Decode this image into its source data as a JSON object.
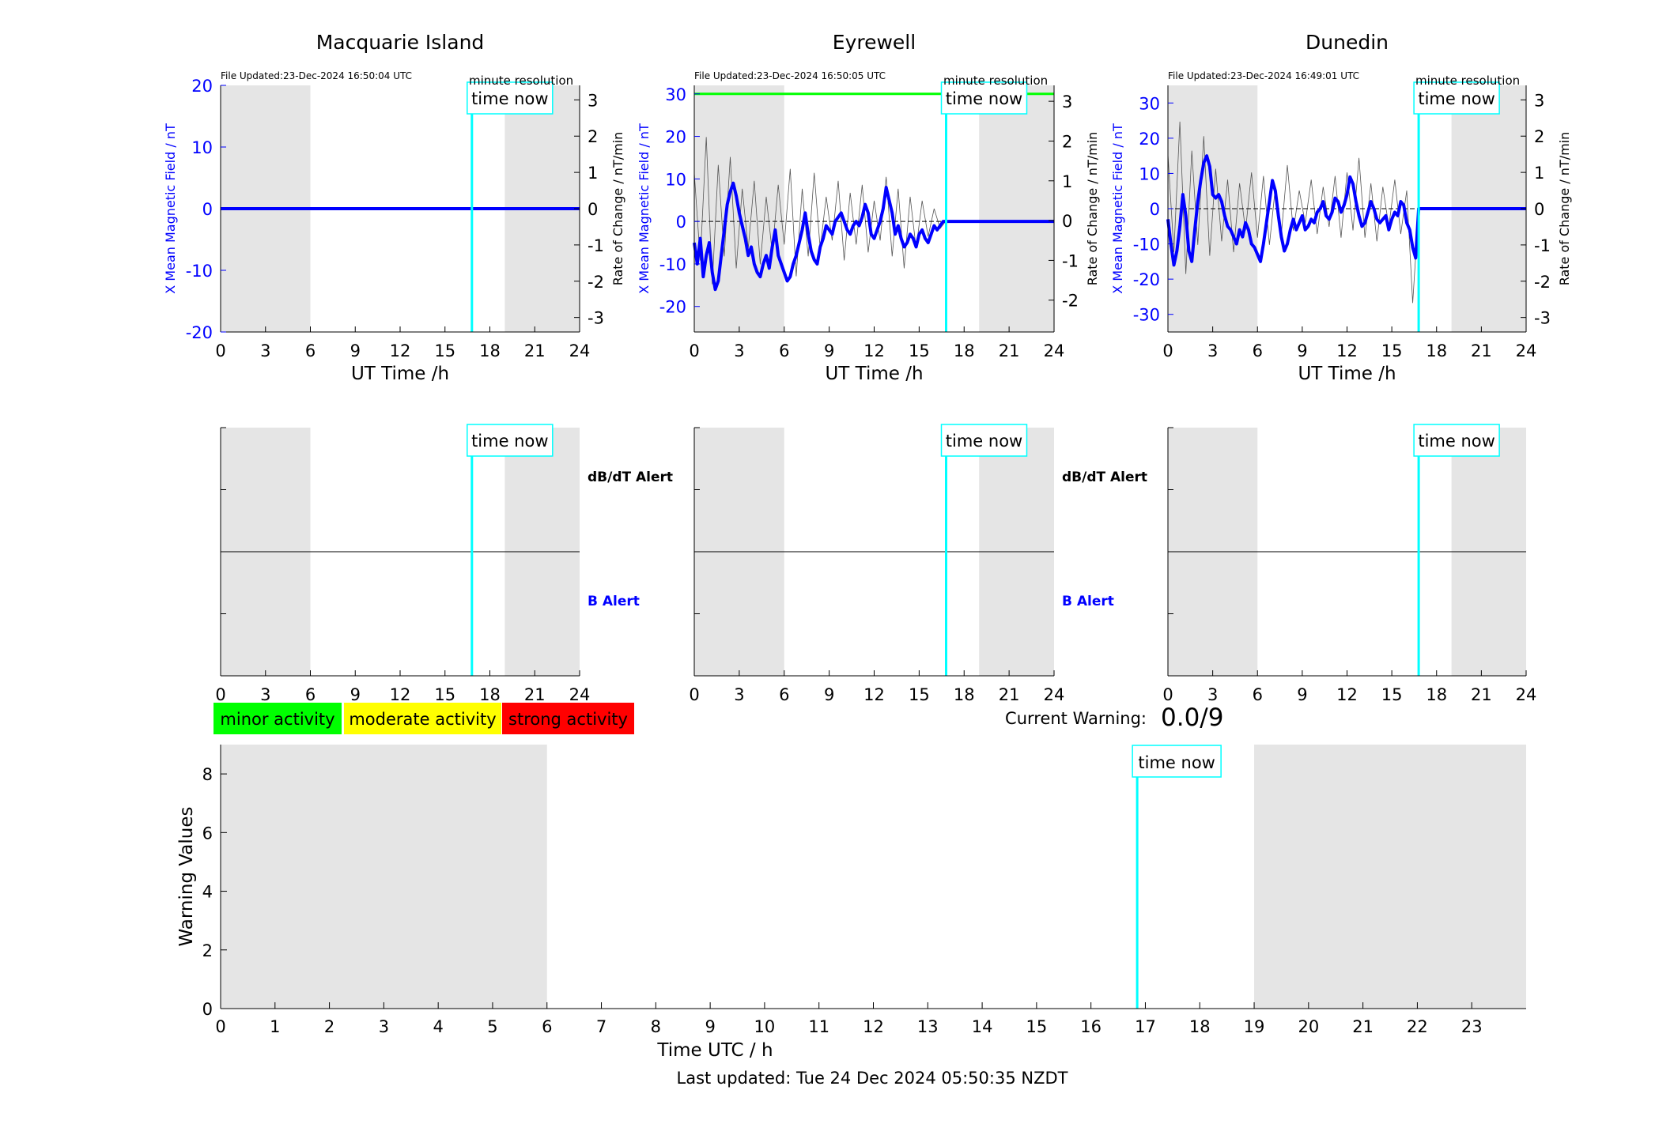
{
  "colors": {
    "field": "#0000ff",
    "rate": "#000000",
    "now": "#00ffff",
    "shade": "#e5e5e5",
    "alert_limit": "#00ff00",
    "minor": "#00ff00",
    "moderate": "#ffff00",
    "strong": "#ff0000"
  },
  "time_now_label": "time now",
  "last_updated": "Last updated: Tue 24 Dec 2024 05:50:35 NZDT",
  "current_warning": {
    "label": "Current Warning:",
    "value": "0.0/9"
  },
  "legend": [
    "minor activity",
    "moderate activity",
    "strong activity"
  ],
  "alert_labels": {
    "rate": "dB/dT Alert",
    "field": "B Alert"
  },
  "chart_data": [
    {
      "type": "line",
      "title": "Macquarie Island",
      "file_updated": "File Updated:23-Dec-2024 16:50:04 UTC",
      "resolution": "minute resolution",
      "xlabel": "UT Time /h",
      "ylabel_left": "X Mean Magnetic Field / nT",
      "ylabel_right": "Rate of Change / nT/min",
      "xlim": [
        0,
        24
      ],
      "xticks": [
        0,
        3,
        6,
        9,
        12,
        15,
        18,
        21,
        24
      ],
      "ylim_left": [
        -20,
        20
      ],
      "yticks_left": [
        -20,
        -10,
        0,
        10,
        20
      ],
      "ylim_right": [
        -3.4,
        3.4
      ],
      "yticks_right": [
        -3,
        -2,
        -1,
        0,
        1,
        2,
        3
      ],
      "shaded_hours": [
        [
          0,
          6
        ],
        [
          19,
          24
        ]
      ],
      "time_now": 16.8,
      "alert_line_nT": null,
      "series": [
        {
          "name": "X Mean Magnetic Field",
          "axis": "left",
          "x": [
            0,
            24
          ],
          "y": [
            0,
            0
          ]
        },
        {
          "name": "Rate of Change",
          "axis": "right",
          "x": [
            0,
            24
          ],
          "y": [
            0,
            0
          ]
        }
      ]
    },
    {
      "type": "line",
      "title": "Eyrewell",
      "file_updated": "File Updated:23-Dec-2024 16:50:05 UTC",
      "resolution": "minute resolution",
      "xlabel": "UT Time /h",
      "ylabel_left": "X Mean Magnetic Field / nT",
      "ylabel_right": "Rate of Change / nT/min",
      "xlim": [
        0,
        24
      ],
      "xticks": [
        0,
        3,
        6,
        9,
        12,
        15,
        18,
        21,
        24
      ],
      "ylim_left": [
        -26,
        32
      ],
      "yticks_left": [
        -20,
        -10,
        0,
        10,
        20,
        30
      ],
      "ylim_right": [
        -2.8,
        3.4
      ],
      "yticks_right": [
        -2,
        -1,
        0,
        1,
        2,
        3
      ],
      "shaded_hours": [
        [
          0,
          6
        ],
        [
          19,
          24
        ]
      ],
      "time_now": 16.8,
      "alert_line_nT": 30,
      "series": [
        {
          "name": "X Mean Magnetic Field",
          "axis": "left",
          "x": [
            0,
            0.2,
            0.4,
            0.6,
            0.8,
            1.0,
            1.2,
            1.4,
            1.6,
            1.8,
            2.0,
            2.2,
            2.4,
            2.6,
            2.8,
            3.0,
            3.2,
            3.4,
            3.6,
            3.8,
            4.0,
            4.2,
            4.4,
            4.6,
            4.8,
            5.0,
            5.2,
            5.4,
            5.6,
            5.8,
            6.0,
            6.2,
            6.4,
            6.6,
            6.8,
            7.0,
            7.2,
            7.4,
            7.6,
            7.8,
            8.0,
            8.2,
            8.4,
            8.6,
            8.8,
            9.0,
            9.2,
            9.4,
            9.6,
            9.8,
            10.0,
            10.2,
            10.4,
            10.6,
            10.8,
            11.0,
            11.2,
            11.4,
            11.6,
            11.8,
            12.0,
            12.2,
            12.4,
            12.6,
            12.8,
            13.0,
            13.2,
            13.4,
            13.6,
            13.8,
            14.0,
            14.2,
            14.4,
            14.6,
            14.8,
            15.0,
            15.2,
            15.4,
            15.6,
            15.8,
            16.0,
            16.2,
            16.4,
            16.6,
            16.8,
            24.0
          ],
          "y": [
            -5,
            -10,
            -4,
            -13,
            -8,
            -5,
            -12,
            -16,
            -14,
            -8,
            -2,
            4,
            7,
            9,
            6,
            2,
            -1,
            -4,
            -8,
            -6,
            -10,
            -12,
            -13,
            -10,
            -8,
            -11,
            -6,
            -2,
            -8,
            -10,
            -12,
            -14,
            -13,
            -10,
            -8,
            -5,
            -2,
            2,
            -3,
            -7,
            -9,
            -10,
            -6,
            -4,
            -1,
            -2,
            -3,
            0,
            1,
            2,
            0,
            -2,
            -3,
            -1,
            0,
            -1,
            1,
            4,
            2,
            -3,
            -4,
            -2,
            0,
            3,
            8,
            5,
            2,
            -3,
            -1,
            -4,
            -6,
            -5,
            -3,
            -4,
            -6,
            -3,
            -2,
            -4,
            -5,
            -3,
            -1,
            -2,
            -1,
            0,
            0,
            0
          ]
        },
        {
          "name": "Rate of Change",
          "axis": "right",
          "x": [
            0,
            0.4,
            0.8,
            1.2,
            1.6,
            2.0,
            2.4,
            2.8,
            3.2,
            3.6,
            4.0,
            4.4,
            4.8,
            5.2,
            5.6,
            6.0,
            6.4,
            6.8,
            7.2,
            7.6,
            8.0,
            8.4,
            8.8,
            9.2,
            9.6,
            10.0,
            10.4,
            10.8,
            11.2,
            11.6,
            12.0,
            12.4,
            12.8,
            13.2,
            13.6,
            14.0,
            14.4,
            14.8,
            15.2,
            15.6,
            16.0,
            16.4,
            16.8,
            24.0
          ],
          "y": [
            1.2,
            -1.0,
            2.1,
            -1.6,
            1.4,
            -0.9,
            1.6,
            -1.2,
            0.8,
            -0.7,
            1.0,
            -1.1,
            0.6,
            -0.8,
            0.9,
            -0.6,
            1.3,
            -1.4,
            0.8,
            -0.9,
            1.2,
            -0.7,
            0.6,
            -0.5,
            1.0,
            -1.0,
            0.7,
            -0.6,
            0.9,
            -0.8,
            0.5,
            -0.5,
            1.1,
            -0.9,
            0.8,
            -1.2,
            0.6,
            -0.7,
            0.5,
            -0.4,
            0.3,
            -0.2,
            0,
            0
          ]
        }
      ]
    },
    {
      "type": "line",
      "title": "Dunedin",
      "file_updated": "File Updated:23-Dec-2024 16:49:01 UTC",
      "resolution": "minute resolution",
      "xlabel": "UT Time /h",
      "ylabel_left": "X Mean Magnetic Field / nT",
      "ylabel_right": "Rate of Change / nT/min",
      "xlim": [
        0,
        24
      ],
      "xticks": [
        0,
        3,
        6,
        9,
        12,
        15,
        18,
        21,
        24
      ],
      "ylim_left": [
        -35,
        35
      ],
      "yticks_left": [
        -30,
        -20,
        -10,
        0,
        10,
        20,
        30
      ],
      "ylim_right": [
        -3.4,
        3.4
      ],
      "yticks_right": [
        -3,
        -2,
        -1,
        0,
        1,
        2,
        3
      ],
      "shaded_hours": [
        [
          0,
          6
        ],
        [
          19,
          24
        ]
      ],
      "time_now": 16.8,
      "alert_line_nT": null,
      "series": [
        {
          "name": "X Mean Magnetic Field",
          "axis": "left",
          "x": [
            0,
            0.2,
            0.4,
            0.6,
            0.8,
            1.0,
            1.2,
            1.4,
            1.6,
            1.8,
            2.0,
            2.2,
            2.4,
            2.6,
            2.8,
            3.0,
            3.2,
            3.4,
            3.6,
            3.8,
            4.0,
            4.2,
            4.4,
            4.6,
            4.8,
            5.0,
            5.2,
            5.4,
            5.6,
            5.8,
            6.0,
            6.2,
            6.4,
            6.6,
            6.8,
            7.0,
            7.2,
            7.4,
            7.6,
            7.8,
            8.0,
            8.2,
            8.4,
            8.6,
            8.8,
            9.0,
            9.2,
            9.4,
            9.6,
            9.8,
            10.0,
            10.2,
            10.4,
            10.6,
            10.8,
            11.0,
            11.2,
            11.4,
            11.6,
            11.8,
            12.0,
            12.2,
            12.4,
            12.6,
            12.8,
            13.0,
            13.2,
            13.4,
            13.6,
            13.8,
            14.0,
            14.2,
            14.4,
            14.6,
            14.8,
            15.0,
            15.2,
            15.4,
            15.6,
            15.8,
            16.0,
            16.2,
            16.4,
            16.6,
            16.8,
            24.0
          ],
          "y": [
            -3,
            -10,
            -16,
            -12,
            -5,
            4,
            -2,
            -12,
            -15,
            -6,
            2,
            8,
            13,
            15,
            12,
            4,
            3,
            4,
            2,
            -2,
            -5,
            -6,
            -8,
            -10,
            -6,
            -8,
            -4,
            -6,
            -10,
            -11,
            -13,
            -15,
            -10,
            -4,
            2,
            8,
            5,
            -2,
            -8,
            -12,
            -10,
            -6,
            -3,
            -6,
            -4,
            -2,
            -6,
            -5,
            -3,
            -4,
            -1,
            0,
            2,
            -2,
            -3,
            -1,
            3,
            2,
            -1,
            1,
            4,
            9,
            7,
            2,
            -2,
            -5,
            -4,
            -1,
            2,
            0,
            -3,
            -4,
            -3,
            -2,
            -6,
            -3,
            -1,
            -2,
            2,
            1,
            -4,
            -6,
            -11,
            -14,
            0,
            0
          ]
        },
        {
          "name": "Rate of Change",
          "axis": "right",
          "x": [
            0,
            0.4,
            0.8,
            1.2,
            1.6,
            2.0,
            2.4,
            2.8,
            3.2,
            3.6,
            4.0,
            4.4,
            4.8,
            5.2,
            5.6,
            6.0,
            6.4,
            6.8,
            7.2,
            7.6,
            8.0,
            8.4,
            8.8,
            9.2,
            9.6,
            10.0,
            10.4,
            10.8,
            11.2,
            11.6,
            12.0,
            12.4,
            12.8,
            13.2,
            13.6,
            14.0,
            14.4,
            14.8,
            15.2,
            15.6,
            16.0,
            16.4,
            16.8,
            24.0
          ],
          "y": [
            1.5,
            -1.2,
            2.4,
            -1.8,
            1.6,
            -1.0,
            2.0,
            -1.3,
            1.1,
            -0.9,
            0.8,
            -1.2,
            0.7,
            -0.6,
            1.0,
            -0.8,
            0.9,
            -1.0,
            0.6,
            -0.7,
            1.2,
            -0.6,
            0.5,
            -0.4,
            0.8,
            -0.7,
            0.6,
            -0.5,
            0.9,
            -0.8,
            1.0,
            -0.6,
            1.4,
            -0.8,
            0.7,
            -0.9,
            0.6,
            -0.5,
            0.8,
            -0.7,
            0.5,
            -2.6,
            0,
            0
          ]
        }
      ]
    },
    {
      "type": "line",
      "title": "",
      "xlabel": "",
      "ylabel_left": "",
      "xlim": [
        0,
        24
      ],
      "xticks": [
        0,
        3,
        6,
        9,
        12,
        15,
        18,
        21,
        24
      ],
      "shaded_hours": [
        [
          0,
          6
        ],
        [
          19,
          24
        ]
      ],
      "time_now": 16.8,
      "upper_label": "dB/dT Alert",
      "lower_label": "B Alert",
      "series": []
    },
    {
      "type": "line",
      "title": "",
      "xlabel": "",
      "ylabel_left": "",
      "xlim": [
        0,
        24
      ],
      "xticks": [
        0,
        3,
        6,
        9,
        12,
        15,
        18,
        21,
        24
      ],
      "shaded_hours": [
        [
          0,
          6
        ],
        [
          19,
          24
        ]
      ],
      "time_now": 16.8,
      "upper_label": "dB/dT Alert",
      "lower_label": "B Alert",
      "series": []
    },
    {
      "type": "line",
      "title": "",
      "xlabel": "",
      "ylabel_left": "",
      "xlim": [
        0,
        24
      ],
      "xticks": [
        0,
        3,
        6,
        9,
        12,
        15,
        18,
        21,
        24
      ],
      "shaded_hours": [
        [
          0,
          6
        ],
        [
          19,
          24
        ]
      ],
      "time_now": 16.8,
      "series": []
    },
    {
      "type": "bar",
      "title": "",
      "xlabel": "Time UTC / h",
      "ylabel": "Warning Values",
      "xlim": [
        0,
        24
      ],
      "xticks": [
        0,
        1,
        2,
        3,
        4,
        5,
        6,
        7,
        8,
        9,
        10,
        11,
        12,
        13,
        14,
        15,
        16,
        17,
        18,
        19,
        20,
        21,
        22,
        23
      ],
      "ylim": [
        0,
        9
      ],
      "yticks": [
        0,
        2,
        4,
        6,
        8
      ],
      "shaded_hours": [
        [
          0,
          6
        ],
        [
          19,
          24
        ]
      ],
      "time_now": 16.85,
      "values": []
    }
  ]
}
